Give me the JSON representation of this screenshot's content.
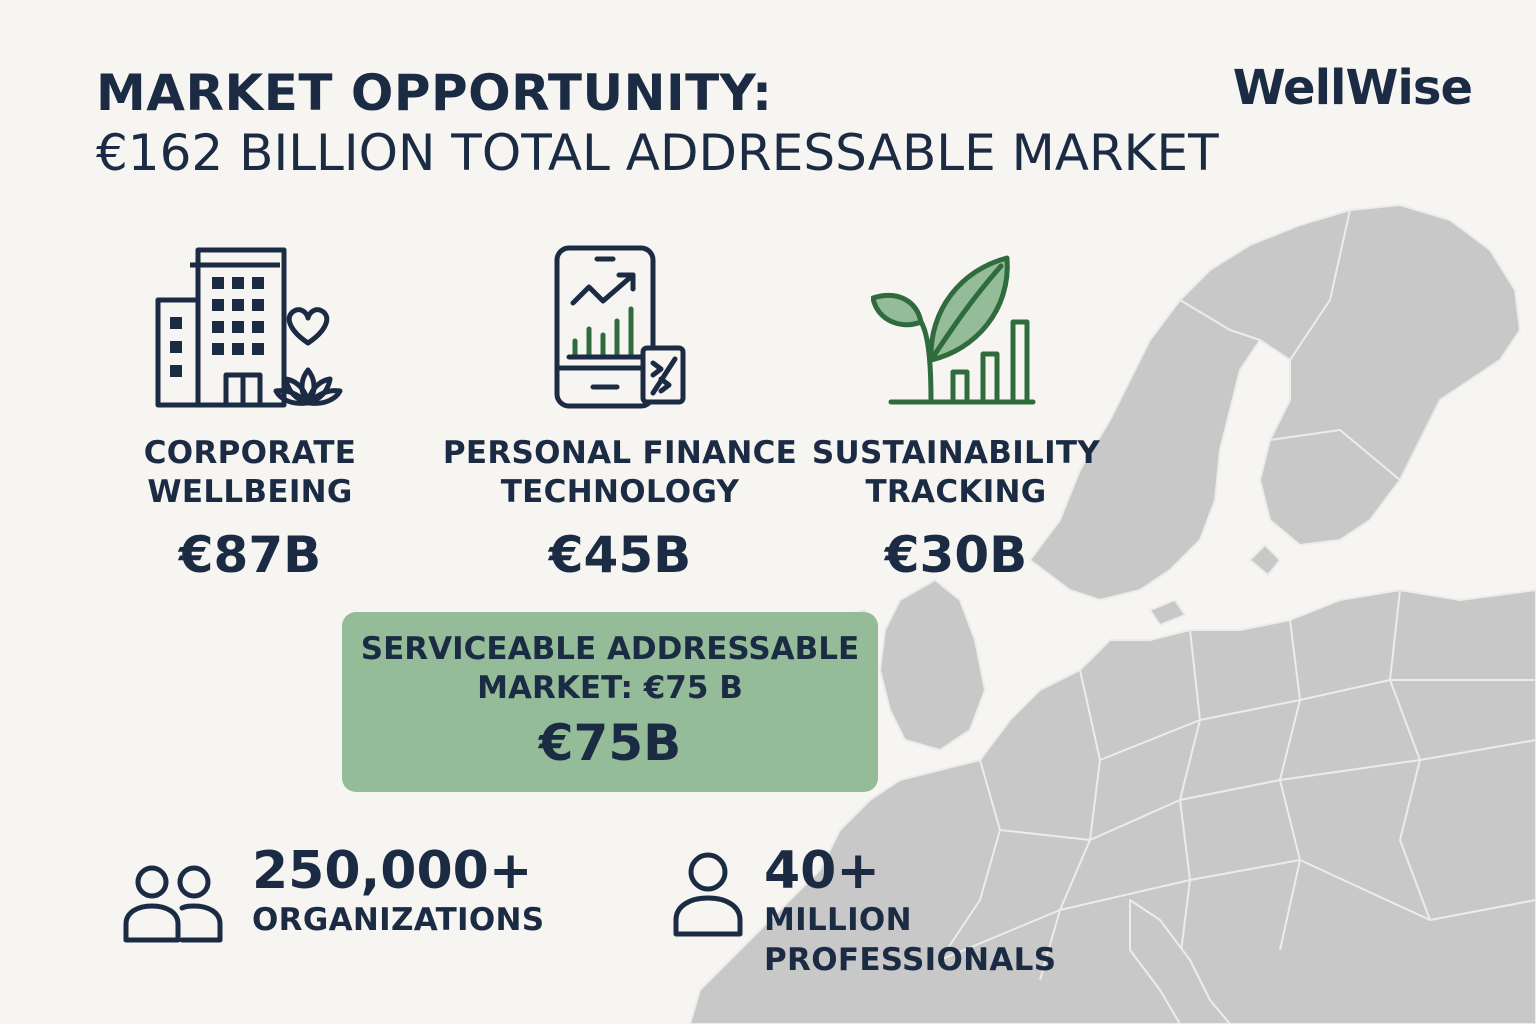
{
  "header": {
    "title_line1": "MARKET OPPORTUNITY:",
    "title_line2": "€162 BILLION TOTAL ADDRESSABLE MARKET",
    "logo": "WellWise"
  },
  "segments": [
    {
      "label_line1": "CORPORATE",
      "label_line2": "WELLBEING",
      "value": "€87B",
      "icon": "office-building-heart-lotus-icon"
    },
    {
      "label_line1": "PERSONAL FINANCE",
      "label_line2": "TECHNOLOGY",
      "value": "€45B",
      "icon": "smartphone-chart-icon"
    },
    {
      "label_line1": "SUSTAINABILITY",
      "label_line2": "TRACKING",
      "value": "€30B",
      "icon": "leaf-bar-chart-icon"
    }
  ],
  "sam": {
    "label_line1": "SERVICEABLE ADDRESSABLE",
    "label_line2": "MARKET: €75 B",
    "value": "€75B"
  },
  "stats": [
    {
      "value": "250,000+",
      "label_line1": "ORGANIZATIONS",
      "icon": "two-people-icon"
    },
    {
      "value": "40+",
      "label_line1": "MILLION",
      "label_line2": "PROFESSIONALS",
      "icon": "person-icon"
    }
  ],
  "colors": {
    "background": "#f6f5f1",
    "text": "#1c2b44",
    "accent_green": "#94bc98",
    "icon_green": "#2f6b3c",
    "map_gray": "#c6c6c6"
  }
}
